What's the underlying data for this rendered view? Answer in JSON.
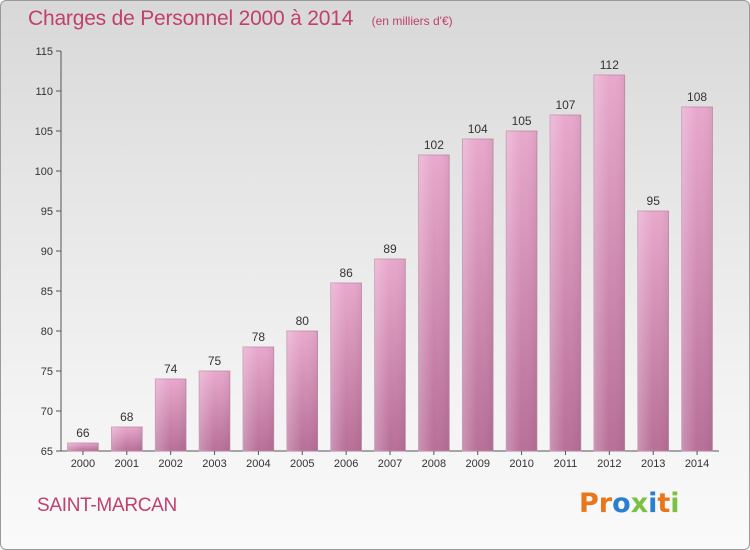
{
  "header": {
    "title": "Charges de Personnel 2000 à 2014",
    "subtitle": "(en milliers d'€)"
  },
  "footer": {
    "commune": "SAINT-MARCAN",
    "logo": "Proxiti",
    "logo_colors": [
      "#e8761b",
      "#e8761b",
      "#2a7fd0",
      "#7cc242",
      "#2a7fd0",
      "#e8761b",
      "#7cc242"
    ]
  },
  "chart_data": {
    "type": "bar",
    "title": "Charges de Personnel 2000 à 2014",
    "subtitle": "(en milliers d'€)",
    "categories": [
      "2000",
      "2001",
      "2002",
      "2003",
      "2004",
      "2005",
      "2006",
      "2007",
      "2008",
      "2009",
      "2010",
      "2011",
      "2012",
      "2013",
      "2014"
    ],
    "values": [
      66,
      68,
      74,
      75,
      78,
      80,
      86,
      89,
      102,
      104,
      105,
      107,
      112,
      95,
      108
    ],
    "data_labels": [
      "66",
      "68",
      "74",
      "75",
      "78",
      "80",
      "86",
      "89",
      "102",
      "104",
      "105",
      "107",
      "112",
      "95",
      "108"
    ],
    "ylim": [
      65,
      115
    ],
    "yticks": [
      65,
      70,
      75,
      80,
      85,
      90,
      95,
      100,
      105,
      110,
      115
    ],
    "ytick_labels": [
      "65",
      "70",
      "75",
      "80",
      "85",
      "90",
      "95",
      "100",
      "105",
      "110",
      "115"
    ],
    "grid": false,
    "bar_color": "#d37fae"
  }
}
